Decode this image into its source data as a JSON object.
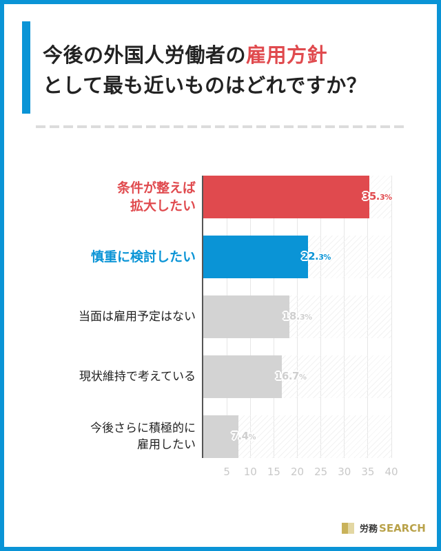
{
  "title": {
    "line1_prefix": "今後の外国人労働者の",
    "line1_highlight": "雇用方針",
    "line2": "として最も近いものはどれですか？"
  },
  "colors": {
    "frame": "#0a94d6",
    "highlight_red": "#e04a4e",
    "highlight_blue": "#0a94d6",
    "neutral_bar": "#d3d3d3",
    "neutral_label": "#cfcfcf"
  },
  "chart_data": {
    "type": "bar",
    "orientation": "horizontal",
    "title": "今後の外国人労働者の雇用方針として最も近いものはどれですか？",
    "categories": [
      "条件が整えば拡大したい",
      "慎重に検討したい",
      "当面は雇用予定はない",
      "現状維持で考えている",
      "今後さらに積極的に雇用したい"
    ],
    "values": [
      35.3,
      22.3,
      18.3,
      16.7,
      7.4
    ],
    "value_labels": [
      "35.3%",
      "22.3%",
      "18.3%",
      "16.7%",
      "7.4%"
    ],
    "xlabel": "",
    "ylabel": "",
    "xlim": [
      0,
      40
    ],
    "xticks": [
      5,
      10,
      15,
      20,
      25,
      30,
      35,
      40
    ],
    "grid": true,
    "legend": null
  },
  "categories_display": [
    {
      "lines": [
        "条件が整えば",
        "拡大したい"
      ],
      "style": "red"
    },
    {
      "lines": [
        "慎重に検討したい"
      ],
      "style": "blue"
    },
    {
      "lines": [
        "当面は雇用予定はない"
      ],
      "style": "gray"
    },
    {
      "lines": [
        "現状維持で考えている"
      ],
      "style": "gray"
    },
    {
      "lines": [
        "今後さらに積極的に",
        "雇用したい"
      ],
      "style": "gray"
    }
  ],
  "value_parts": [
    {
      "main": "35.",
      "small": "3%"
    },
    {
      "main": "22.",
      "small": "3%"
    },
    {
      "main": "18.",
      "small": "3%"
    },
    {
      "main": "16.7",
      "small": "%"
    },
    {
      "main": "7.4",
      "small": "%"
    }
  ],
  "ticks": [
    "5",
    "10",
    "15",
    "20",
    "25",
    "30",
    "35",
    "40"
  ],
  "logo": {
    "jp": "労務",
    "en": "SEARCH"
  }
}
